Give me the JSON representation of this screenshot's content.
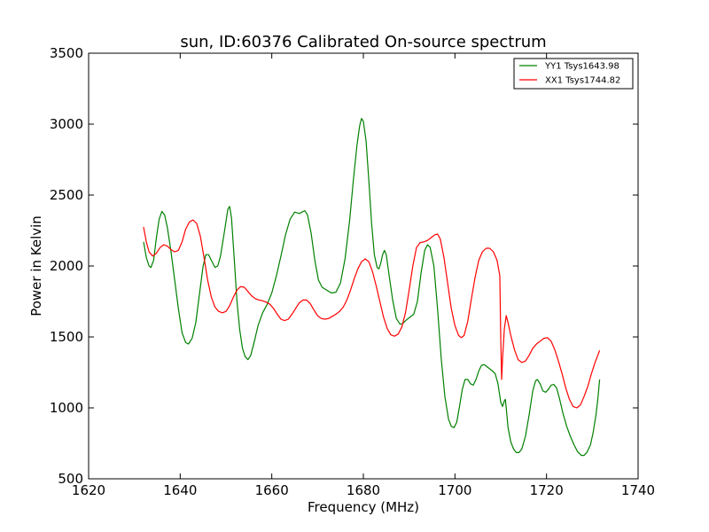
{
  "chart_data": {
    "type": "line",
    "title": "sun, ID:60376 Calibrated On-source spectrum",
    "xlabel": "Frequency (MHz)",
    "ylabel": "Power in Kelvin",
    "xlim": [
      1620,
      1740
    ],
    "ylim": [
      500,
      3500
    ],
    "xticks": [
      1620,
      1640,
      1660,
      1680,
      1700,
      1720,
      1740
    ],
    "yticks": [
      500,
      1000,
      1500,
      2000,
      2500,
      3000,
      3500
    ],
    "grid": false,
    "legend_position": "top-right",
    "series": [
      {
        "name": "YY1 Tsys1643.98",
        "color": "#008000",
        "points": [
          [
            1632.0,
            2170
          ],
          [
            1632.6,
            2060
          ],
          [
            1633.2,
            2000
          ],
          [
            1633.6,
            1990
          ],
          [
            1634.2,
            2040
          ],
          [
            1634.8,
            2200
          ],
          [
            1635.4,
            2330
          ],
          [
            1636.0,
            2385
          ],
          [
            1636.6,
            2360
          ],
          [
            1637.2,
            2270
          ],
          [
            1638.0,
            2100
          ],
          [
            1638.8,
            1900
          ],
          [
            1639.6,
            1700
          ],
          [
            1640.4,
            1530
          ],
          [
            1641.2,
            1460
          ],
          [
            1641.8,
            1450
          ],
          [
            1642.6,
            1490
          ],
          [
            1643.4,
            1600
          ],
          [
            1644.2,
            1800
          ],
          [
            1645.0,
            2000
          ],
          [
            1645.6,
            2080
          ],
          [
            1646.2,
            2080
          ],
          [
            1646.8,
            2040
          ],
          [
            1647.6,
            1990
          ],
          [
            1648.2,
            2000
          ],
          [
            1648.8,
            2070
          ],
          [
            1649.6,
            2230
          ],
          [
            1650.4,
            2400
          ],
          [
            1650.8,
            2420
          ],
          [
            1651.2,
            2340
          ],
          [
            1651.8,
            2050
          ],
          [
            1652.4,
            1750
          ],
          [
            1653.0,
            1550
          ],
          [
            1653.6,
            1420
          ],
          [
            1654.2,
            1360
          ],
          [
            1654.8,
            1340
          ],
          [
            1655.4,
            1370
          ],
          [
            1656.2,
            1470
          ],
          [
            1657.0,
            1580
          ],
          [
            1658.0,
            1670
          ],
          [
            1659.0,
            1730
          ],
          [
            1660.0,
            1810
          ],
          [
            1661.0,
            1930
          ],
          [
            1662.0,
            2070
          ],
          [
            1663.0,
            2220
          ],
          [
            1664.0,
            2330
          ],
          [
            1665.0,
            2380
          ],
          [
            1666.0,
            2370
          ],
          [
            1666.6,
            2380
          ],
          [
            1667.2,
            2390
          ],
          [
            1667.8,
            2360
          ],
          [
            1668.6,
            2230
          ],
          [
            1669.4,
            2040
          ],
          [
            1670.2,
            1900
          ],
          [
            1671.0,
            1850
          ],
          [
            1672.0,
            1830
          ],
          [
            1673.0,
            1810
          ],
          [
            1674.0,
            1815
          ],
          [
            1675.0,
            1880
          ],
          [
            1676.0,
            2050
          ],
          [
            1677.0,
            2320
          ],
          [
            1677.8,
            2600
          ],
          [
            1678.6,
            2850
          ],
          [
            1679.2,
            2990
          ],
          [
            1679.6,
            3040
          ],
          [
            1680.0,
            3020
          ],
          [
            1680.6,
            2880
          ],
          [
            1681.2,
            2600
          ],
          [
            1681.8,
            2300
          ],
          [
            1682.4,
            2080
          ],
          [
            1683.0,
            1990
          ],
          [
            1683.4,
            1980
          ],
          [
            1683.8,
            2020
          ],
          [
            1684.2,
            2080
          ],
          [
            1684.6,
            2110
          ],
          [
            1685.0,
            2080
          ],
          [
            1685.6,
            1940
          ],
          [
            1686.4,
            1760
          ],
          [
            1687.2,
            1630
          ],
          [
            1688.0,
            1590
          ],
          [
            1688.6,
            1595
          ],
          [
            1689.4,
            1620
          ],
          [
            1690.2,
            1640
          ],
          [
            1691.0,
            1660
          ],
          [
            1691.8,
            1750
          ],
          [
            1692.6,
            1950
          ],
          [
            1693.4,
            2110
          ],
          [
            1694.0,
            2150
          ],
          [
            1694.6,
            2130
          ],
          [
            1695.4,
            2000
          ],
          [
            1696.2,
            1700
          ],
          [
            1697.0,
            1350
          ],
          [
            1697.8,
            1080
          ],
          [
            1698.6,
            920
          ],
          [
            1699.2,
            870
          ],
          [
            1699.8,
            860
          ],
          [
            1700.4,
            900
          ],
          [
            1701.0,
            1010
          ],
          [
            1701.6,
            1130
          ],
          [
            1702.2,
            1200
          ],
          [
            1702.8,
            1200
          ],
          [
            1703.4,
            1170
          ],
          [
            1704.0,
            1160
          ],
          [
            1704.6,
            1200
          ],
          [
            1705.2,
            1260
          ],
          [
            1705.8,
            1300
          ],
          [
            1706.4,
            1305
          ],
          [
            1707.0,
            1290
          ],
          [
            1707.6,
            1275
          ],
          [
            1708.2,
            1260
          ],
          [
            1708.8,
            1240
          ],
          [
            1709.4,
            1170
          ],
          [
            1710.0,
            1040
          ],
          [
            1710.4,
            1010
          ],
          [
            1710.8,
            1050
          ],
          [
            1711.0,
            1060
          ],
          [
            1711.2,
            1000
          ],
          [
            1711.6,
            860
          ],
          [
            1712.2,
            760
          ],
          [
            1712.8,
            710
          ],
          [
            1713.4,
            685
          ],
          [
            1714.0,
            685
          ],
          [
            1714.6,
            710
          ],
          [
            1715.4,
            800
          ],
          [
            1716.2,
            950
          ],
          [
            1717.0,
            1120
          ],
          [
            1717.6,
            1190
          ],
          [
            1718.0,
            1200
          ],
          [
            1718.6,
            1170
          ],
          [
            1719.2,
            1120
          ],
          [
            1719.8,
            1110
          ],
          [
            1720.4,
            1130
          ],
          [
            1721.0,
            1160
          ],
          [
            1721.6,
            1165
          ],
          [
            1722.2,
            1140
          ],
          [
            1722.8,
            1070
          ],
          [
            1723.6,
            960
          ],
          [
            1724.4,
            870
          ],
          [
            1725.2,
            800
          ],
          [
            1726.0,
            740
          ],
          [
            1726.8,
            690
          ],
          [
            1727.6,
            665
          ],
          [
            1728.2,
            665
          ],
          [
            1728.8,
            685
          ],
          [
            1729.6,
            740
          ],
          [
            1730.2,
            830
          ],
          [
            1730.8,
            950
          ],
          [
            1731.2,
            1060
          ],
          [
            1731.6,
            1200
          ]
        ]
      },
      {
        "name": "XX1 Tsys1744.82",
        "color": "#ff0000",
        "points": [
          [
            1632.0,
            2275
          ],
          [
            1632.6,
            2170
          ],
          [
            1633.2,
            2100
          ],
          [
            1634.0,
            2070
          ],
          [
            1634.8,
            2090
          ],
          [
            1635.6,
            2130
          ],
          [
            1636.4,
            2150
          ],
          [
            1637.2,
            2140
          ],
          [
            1638.0,
            2115
          ],
          [
            1638.8,
            2100
          ],
          [
            1639.6,
            2110
          ],
          [
            1640.4,
            2170
          ],
          [
            1641.2,
            2260
          ],
          [
            1642.0,
            2310
          ],
          [
            1642.8,
            2325
          ],
          [
            1643.6,
            2300
          ],
          [
            1644.4,
            2210
          ],
          [
            1645.2,
            2060
          ],
          [
            1646.0,
            1900
          ],
          [
            1646.8,
            1780
          ],
          [
            1647.6,
            1710
          ],
          [
            1648.4,
            1680
          ],
          [
            1649.2,
            1670
          ],
          [
            1650.0,
            1680
          ],
          [
            1650.8,
            1720
          ],
          [
            1651.6,
            1780
          ],
          [
            1652.4,
            1830
          ],
          [
            1653.2,
            1855
          ],
          [
            1654.0,
            1850
          ],
          [
            1654.8,
            1820
          ],
          [
            1655.6,
            1790
          ],
          [
            1656.4,
            1770
          ],
          [
            1657.2,
            1760
          ],
          [
            1658.0,
            1755
          ],
          [
            1658.8,
            1745
          ],
          [
            1659.6,
            1730
          ],
          [
            1660.4,
            1700
          ],
          [
            1661.2,
            1660
          ],
          [
            1662.0,
            1625
          ],
          [
            1662.8,
            1615
          ],
          [
            1663.6,
            1625
          ],
          [
            1664.4,
            1660
          ],
          [
            1665.2,
            1700
          ],
          [
            1666.0,
            1740
          ],
          [
            1666.8,
            1760
          ],
          [
            1667.6,
            1760
          ],
          [
            1668.4,
            1735
          ],
          [
            1669.2,
            1690
          ],
          [
            1670.0,
            1650
          ],
          [
            1670.8,
            1630
          ],
          [
            1671.6,
            1625
          ],
          [
            1672.4,
            1630
          ],
          [
            1673.2,
            1645
          ],
          [
            1674.0,
            1660
          ],
          [
            1674.8,
            1680
          ],
          [
            1675.6,
            1710
          ],
          [
            1676.4,
            1760
          ],
          [
            1677.2,
            1830
          ],
          [
            1678.0,
            1910
          ],
          [
            1678.8,
            1980
          ],
          [
            1679.6,
            2030
          ],
          [
            1680.4,
            2050
          ],
          [
            1681.2,
            2030
          ],
          [
            1682.0,
            1960
          ],
          [
            1682.8,
            1860
          ],
          [
            1683.6,
            1750
          ],
          [
            1684.4,
            1640
          ],
          [
            1685.2,
            1560
          ],
          [
            1686.0,
            1515
          ],
          [
            1686.8,
            1505
          ],
          [
            1687.6,
            1520
          ],
          [
            1688.4,
            1570
          ],
          [
            1689.2,
            1670
          ],
          [
            1690.0,
            1830
          ],
          [
            1690.8,
            2000
          ],
          [
            1691.6,
            2130
          ],
          [
            1692.4,
            2165
          ],
          [
            1693.2,
            2170
          ],
          [
            1694.0,
            2180
          ],
          [
            1694.8,
            2200
          ],
          [
            1695.6,
            2220
          ],
          [
            1696.2,
            2225
          ],
          [
            1696.8,
            2190
          ],
          [
            1697.6,
            2060
          ],
          [
            1698.4,
            1880
          ],
          [
            1699.2,
            1700
          ],
          [
            1700.0,
            1580
          ],
          [
            1700.8,
            1510
          ],
          [
            1701.4,
            1495
          ],
          [
            1702.0,
            1510
          ],
          [
            1702.8,
            1610
          ],
          [
            1703.6,
            1770
          ],
          [
            1704.4,
            1920
          ],
          [
            1705.2,
            2040
          ],
          [
            1706.0,
            2100
          ],
          [
            1706.8,
            2125
          ],
          [
            1707.6,
            2125
          ],
          [
            1708.4,
            2100
          ],
          [
            1709.2,
            2040
          ],
          [
            1709.8,
            1930
          ],
          [
            1710.0,
            1500
          ],
          [
            1710.2,
            1200
          ],
          [
            1710.4,
            1350
          ],
          [
            1710.8,
            1560
          ],
          [
            1711.2,
            1650
          ],
          [
            1711.6,
            1600
          ],
          [
            1712.2,
            1510
          ],
          [
            1713.0,
            1410
          ],
          [
            1713.8,
            1340
          ],
          [
            1714.6,
            1320
          ],
          [
            1715.4,
            1330
          ],
          [
            1716.2,
            1370
          ],
          [
            1717.0,
            1420
          ],
          [
            1717.8,
            1450
          ],
          [
            1718.6,
            1470
          ],
          [
            1719.4,
            1490
          ],
          [
            1720.2,
            1495
          ],
          [
            1721.0,
            1470
          ],
          [
            1721.8,
            1410
          ],
          [
            1722.6,
            1330
          ],
          [
            1723.4,
            1240
          ],
          [
            1724.2,
            1140
          ],
          [
            1725.0,
            1060
          ],
          [
            1725.8,
            1010
          ],
          [
            1726.6,
            1000
          ],
          [
            1727.4,
            1020
          ],
          [
            1728.2,
            1080
          ],
          [
            1729.0,
            1150
          ],
          [
            1729.8,
            1240
          ],
          [
            1730.6,
            1320
          ],
          [
            1731.2,
            1370
          ],
          [
            1731.6,
            1405
          ]
        ]
      }
    ]
  }
}
